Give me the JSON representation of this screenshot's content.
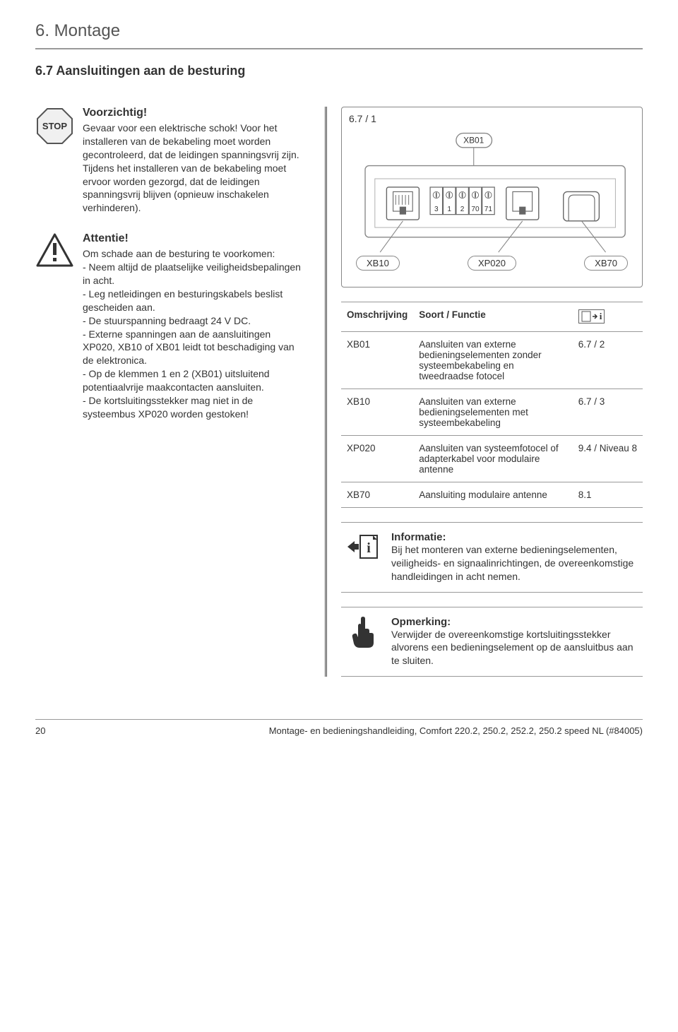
{
  "chapter": "6.  Montage",
  "section": "6.7  Aansluitingen aan de besturing",
  "stop": {
    "icon_text": "STOP",
    "title": "Voorzichtig!",
    "body": "Gevaar voor een elektrische schok! Voor het installeren van de bekabeling moet worden gecontroleerd, dat de leidingen spanningsvrij zijn. Tijdens het installeren van de bekabeling moet ervoor worden gezorgd, dat de leidingen spanningsvrij blijven (opnieuw inschakelen verhinderen)."
  },
  "attention": {
    "title": "Attentie!",
    "intro": "Om schade aan de besturing te voorkomen:",
    "items": [
      "Neem altijd de plaatselijke veiligheidsbepalingen in acht.",
      "Leg netleidingen en besturingskabels beslist gescheiden aan.",
      "De stuurspanning bedraagt 24 V DC.",
      "Externe spanningen aan de aansluitingen XP020, XB10 of XB01 leidt tot beschadiging van de elektronica.",
      "Op de klemmen 1 en 2 (XB01) uitsluitend potentiaalvrije maakcontacten aansluiten.",
      "De kortsluitingsstekker mag niet in de systeembus XP020 worden gestoken!"
    ]
  },
  "diagram": {
    "ref": "6.7 / 1",
    "top_label": "XB01",
    "terminals": [
      "3",
      "1",
      "2",
      "70",
      "71"
    ],
    "bottom_labels": [
      "XB10",
      "XP020",
      "XB70"
    ]
  },
  "table": {
    "headers": [
      "Omschrijving",
      "Soort / Functie"
    ],
    "rows": [
      {
        "id": "XB01",
        "desc": "Aansluiten van externe bedieningselementen zonder systeembekabeling en tweedraadse fotocel",
        "ref": "6.7 / 2"
      },
      {
        "id": "XB10",
        "desc": "Aansluiten van externe bedieningselementen met systeembekabeling",
        "ref": "6.7 / 3"
      },
      {
        "id": "XP020",
        "desc": "Aansluiten van systeemfotocel of adapterkabel voor modulaire antenne",
        "ref": "9.4 / Niveau 8"
      },
      {
        "id": "XB70",
        "desc": "Aansluiting modulaire antenne",
        "ref": "8.1"
      }
    ]
  },
  "info": {
    "title": "Informatie:",
    "body": "Bij het monteren van externe bedieningselementen, veiligheids- en signaalinrichtingen, de overeenkomstige handleidingen in acht nemen."
  },
  "note": {
    "title": "Opmerking:",
    "body": "Verwijder de overeenkomstige kortsluitingsstekker alvorens een bedieningselement op de aansluitbus aan te sluiten."
  },
  "footer": {
    "page": "20",
    "text": "Montage- en bedieningshandleiding, Comfort 220.2, 250.2, 252.2, 250.2 speed NL (#84005)"
  },
  "colors": {
    "text": "#333333",
    "rule": "#999999",
    "border": "#888888"
  }
}
